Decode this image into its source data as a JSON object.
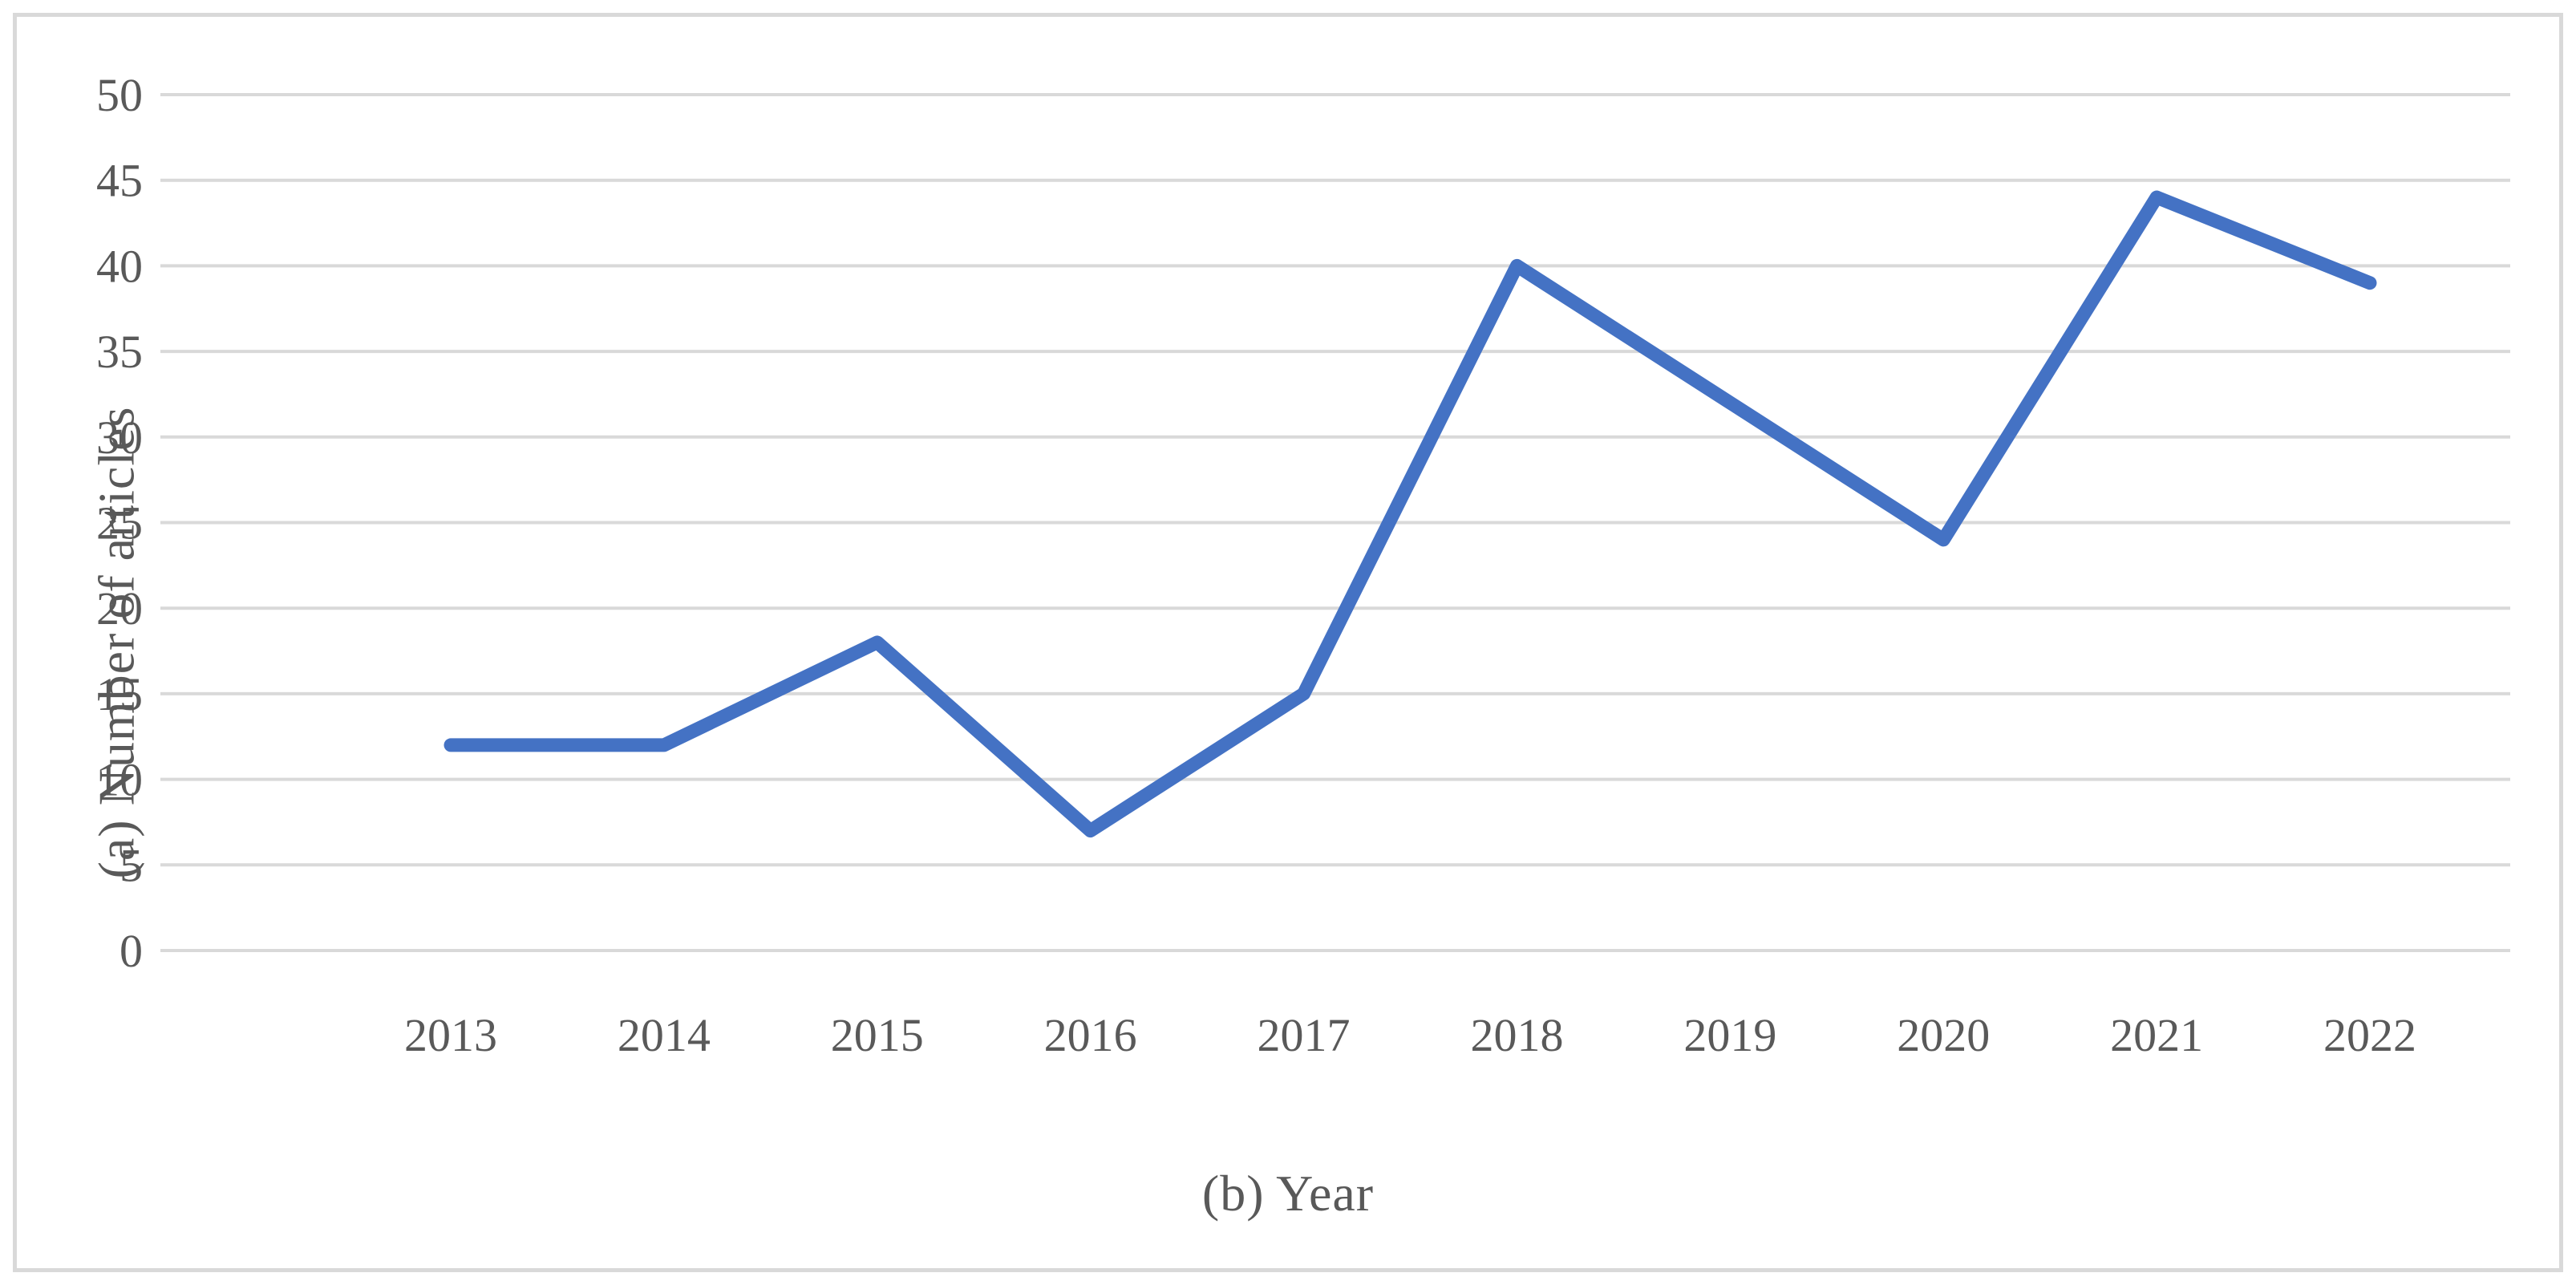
{
  "figure": {
    "background": "#ffffff",
    "border_color": "#d9d9d9"
  },
  "chart_data": {
    "type": "line",
    "title": "",
    "x": [
      "2013",
      "2014",
      "2015",
      "2016",
      "2017",
      "2018",
      "2019",
      "2020",
      "2021",
      "2022"
    ],
    "values": [
      12,
      12,
      18,
      7,
      15,
      40,
      32,
      24,
      44,
      39
    ],
    "series_name": "Number of articles",
    "xlabel": "(b) Year",
    "ylabel": "(a) Number of articles",
    "ylim": [
      0,
      50
    ],
    "yticks": [
      0,
      5,
      10,
      15,
      20,
      25,
      30,
      35,
      40,
      45,
      50
    ],
    "grid": "horizontal",
    "legend_position": "none",
    "line_color": "#4472C4",
    "gridline_color": "#d9d9d9",
    "text_color": "#595959"
  }
}
